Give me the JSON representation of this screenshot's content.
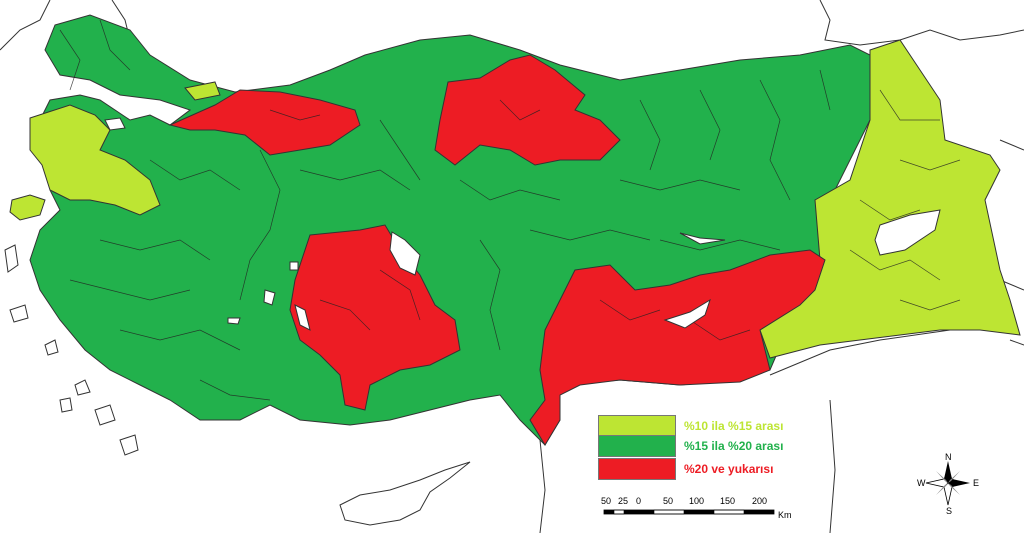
{
  "colors": {
    "low": "#bde533",
    "mid": "#22b14c",
    "high": "#ed1c24",
    "sea": "#ffffff",
    "border": "#333333"
  },
  "legend": [
    {
      "label": "%10 ila %15 arası",
      "color": "#bde533"
    },
    {
      "label": "%15 ila %20 arası",
      "color": "#22b14c"
    },
    {
      "label": "%20 ve yukarısı",
      "color": "#ed1c24"
    }
  ],
  "scale_bar": {
    "ticks": [
      "50",
      "25",
      "0",
      "50",
      "100",
      "150",
      "200"
    ],
    "unit": "Km"
  },
  "compass": {
    "north": "N",
    "south": "S",
    "east": "E",
    "west": "W"
  }
}
